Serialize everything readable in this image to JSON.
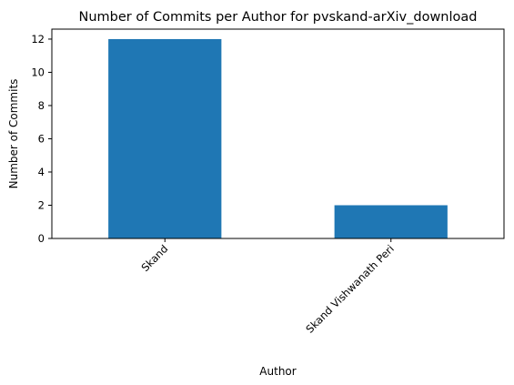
{
  "chart_data": {
    "type": "bar",
    "title": "Number of Commits per Author for pvskand-arXiv_download",
    "xlabel": "Author",
    "ylabel": "Number of Commits",
    "categories": [
      "Skand",
      "Skand Vishwanath Peri"
    ],
    "values": [
      12,
      2
    ],
    "ylim": [
      0,
      12.6
    ],
    "yticks": [
      0,
      2,
      4,
      6,
      8,
      10,
      12
    ],
    "bar_color": "#1f77b4",
    "grid": false,
    "legend": "none"
  }
}
